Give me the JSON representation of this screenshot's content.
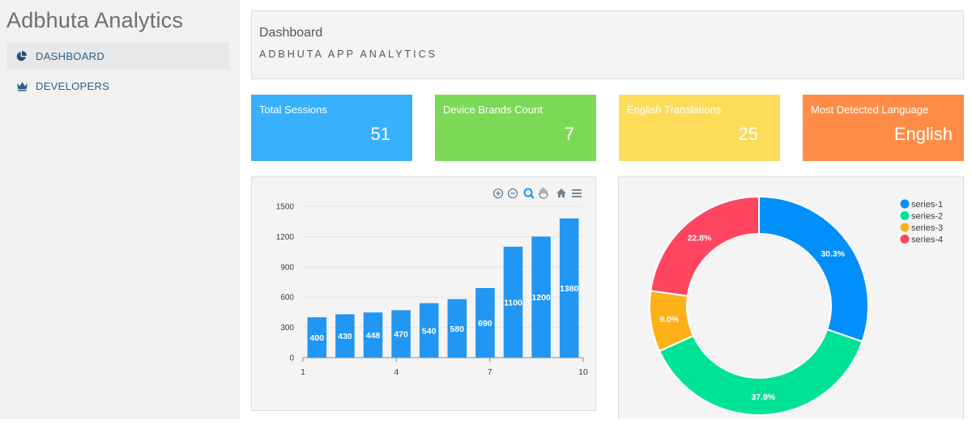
{
  "app": {
    "title": "Adbhuta Analytics"
  },
  "nav": {
    "dashboard": "DASHBOARD",
    "developers": "DEVELOPERS"
  },
  "header": {
    "title": "Dashboard",
    "subtitle": "ADBHUTA APP ANALYTICS"
  },
  "stats": [
    {
      "label": "Total Sessions",
      "value": "51",
      "color": "#38b0fa"
    },
    {
      "label": "Device Brands Count",
      "value": "7",
      "color": "#7cd957"
    },
    {
      "label": "English Translations",
      "value": "25",
      "color": "#fddc5a"
    },
    {
      "label": "Most Detected Language",
      "value": "English",
      "color": "#fe8c47"
    }
  ],
  "toolbar": {
    "zoom_in": "zoom-in-icon",
    "zoom_out": "zoom-out-icon",
    "selection_zoom": "selection-zoom-icon",
    "pan": "pan-hand-icon",
    "reset": "home-icon",
    "menu": "menu-icon"
  },
  "chart_data": [
    {
      "type": "bar",
      "title": "",
      "x": [
        1,
        2,
        3,
        4,
        5,
        6,
        7,
        8,
        9,
        10
      ],
      "values": [
        400,
        430,
        448,
        470,
        540,
        580,
        690,
        1100,
        1200,
        1380
      ],
      "x_tick_labels": [
        "1",
        "4",
        "7",
        "10"
      ],
      "y_ticks": [
        "1500",
        "1200",
        "900",
        "600",
        "300",
        "0"
      ],
      "ylim": [
        0,
        1500
      ],
      "color": "#2196f3"
    },
    {
      "type": "pie",
      "donut": true,
      "labels": [
        "series-1",
        "series-2",
        "series-3",
        "series-4"
      ],
      "values": [
        30.3,
        37.9,
        9.0,
        22.8
      ],
      "value_labels": [
        "30.3%",
        "37.9%",
        "9.0%",
        "22.8%"
      ],
      "colors": [
        "#008ffb",
        "#00e396",
        "#feb019",
        "#ff4560"
      ],
      "legend": "top-right"
    }
  ]
}
